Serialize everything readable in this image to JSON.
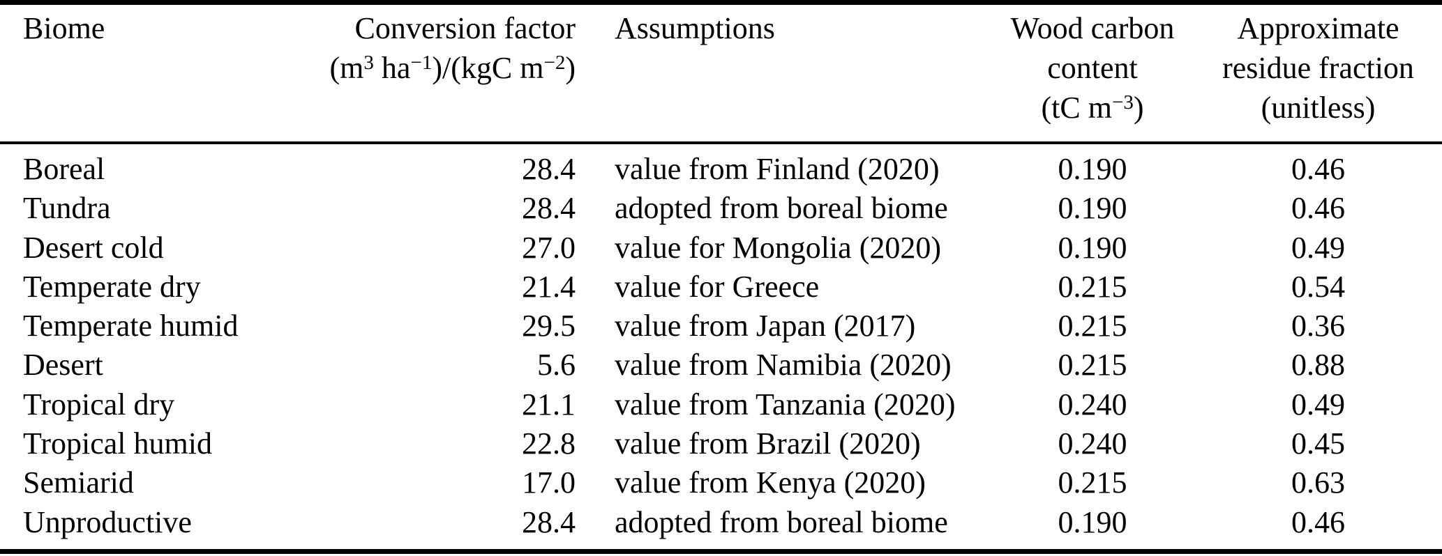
{
  "table": {
    "colors": {
      "text": "#000000",
      "rule": "#000000",
      "background": "#ffffff"
    },
    "columns": [
      {
        "id": "biome",
        "align": "left",
        "lines": [
          [
            {
              "text": "Biome"
            }
          ]
        ]
      },
      {
        "id": "conversion-factor",
        "align": "right",
        "lines": [
          [
            {
              "text": "Conversion factor"
            }
          ],
          [
            {
              "text": "(m"
            },
            {
              "text": "3",
              "sup": true
            },
            {
              "text": " ha"
            },
            {
              "text": "−1",
              "sup": true
            },
            {
              "text": ")/(kgC m"
            },
            {
              "text": "−2",
              "sup": true
            },
            {
              "text": ")"
            }
          ]
        ]
      },
      {
        "id": "assumptions",
        "align": "left",
        "lines": [
          [
            {
              "text": "Assumptions"
            }
          ]
        ]
      },
      {
        "id": "wood-carbon-content",
        "align": "center",
        "lines": [
          [
            {
              "text": "Wood carbon"
            }
          ],
          [
            {
              "text": "content"
            }
          ],
          [
            {
              "text": "(tC m"
            },
            {
              "text": "−3",
              "sup": true
            },
            {
              "text": ")"
            }
          ]
        ]
      },
      {
        "id": "residue-fraction",
        "align": "center",
        "lines": [
          [
            {
              "text": "Approximate"
            }
          ],
          [
            {
              "text": "residue fraction"
            }
          ],
          [
            {
              "text": "(unitless)"
            }
          ]
        ]
      }
    ],
    "rows": [
      [
        "Boreal",
        "28.4",
        "value from Finland (2020)",
        "0.190",
        "0.46"
      ],
      [
        "Tundra",
        "28.4",
        "adopted from boreal biome",
        "0.190",
        "0.46"
      ],
      [
        "Desert cold",
        "27.0",
        "value for Mongolia (2020)",
        "0.190",
        "0.49"
      ],
      [
        "Temperate dry",
        "21.4",
        "value for Greece",
        "0.215",
        "0.54"
      ],
      [
        "Temperate humid",
        "29.5",
        "value from Japan (2017)",
        "0.215",
        "0.36"
      ],
      [
        "Desert",
        "5.6",
        "value from Namibia (2020)",
        "0.215",
        "0.88"
      ],
      [
        "Tropical dry",
        "21.1",
        "value from Tanzania (2020)",
        "0.240",
        "0.49"
      ],
      [
        "Tropical humid",
        "22.8",
        "value from Brazil (2020)",
        "0.240",
        "0.45"
      ],
      [
        "Semiarid",
        "17.0",
        "value from Kenya (2020)",
        "0.215",
        "0.63"
      ],
      [
        "Unproductive",
        "28.4",
        "adopted from boreal biome",
        "0.190",
        "0.46"
      ]
    ]
  }
}
